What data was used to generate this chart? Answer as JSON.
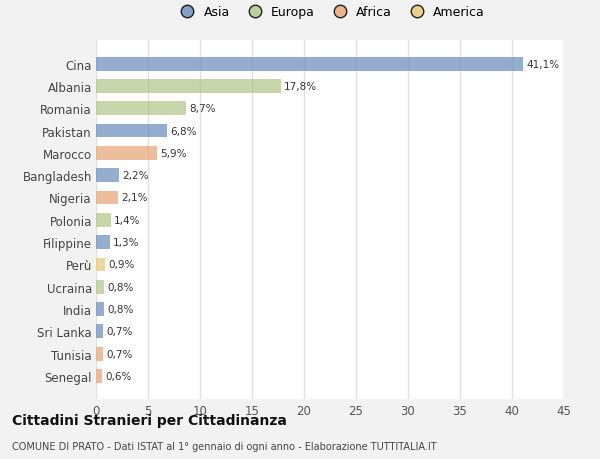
{
  "categories": [
    "Cina",
    "Albania",
    "Romania",
    "Pakistan",
    "Marocco",
    "Bangladesh",
    "Nigeria",
    "Polonia",
    "Filippine",
    "Perù",
    "Ucraina",
    "India",
    "Sri Lanka",
    "Tunisia",
    "Senegal"
  ],
  "values": [
    41.1,
    17.8,
    8.7,
    6.8,
    5.9,
    2.2,
    2.1,
    1.4,
    1.3,
    0.9,
    0.8,
    0.8,
    0.7,
    0.7,
    0.6
  ],
  "labels": [
    "41,1%",
    "17,8%",
    "8,7%",
    "6,8%",
    "5,9%",
    "2,2%",
    "2,1%",
    "1,4%",
    "1,3%",
    "0,9%",
    "0,8%",
    "0,8%",
    "0,7%",
    "0,7%",
    "0,6%"
  ],
  "colors": [
    "#7092be",
    "#b5c98e",
    "#b5c98e",
    "#7092be",
    "#e8a87c",
    "#7092be",
    "#e8a87c",
    "#b5c98e",
    "#7092be",
    "#e8c97c",
    "#b5c98e",
    "#7092be",
    "#7092be",
    "#e8a87c",
    "#e8a87c"
  ],
  "legend": [
    {
      "label": "Asia",
      "color": "#7092be"
    },
    {
      "label": "Europa",
      "color": "#b5c98e"
    },
    {
      "label": "Africa",
      "color": "#e8a87c"
    },
    {
      "label": "America",
      "color": "#e8c97c"
    }
  ],
  "xlim": [
    0,
    45
  ],
  "xticks": [
    0,
    5,
    10,
    15,
    20,
    25,
    30,
    35,
    40,
    45
  ],
  "fig_background": "#f2f2f2",
  "plot_background": "#ffffff",
  "grid_color": "#e0e0e0",
  "title1": "Cittadini Stranieri per Cittadinanza",
  "title2": "COMUNE DI PRATO - Dati ISTAT al 1° gennaio di ogni anno - Elaborazione TUTTITALIA.IT"
}
